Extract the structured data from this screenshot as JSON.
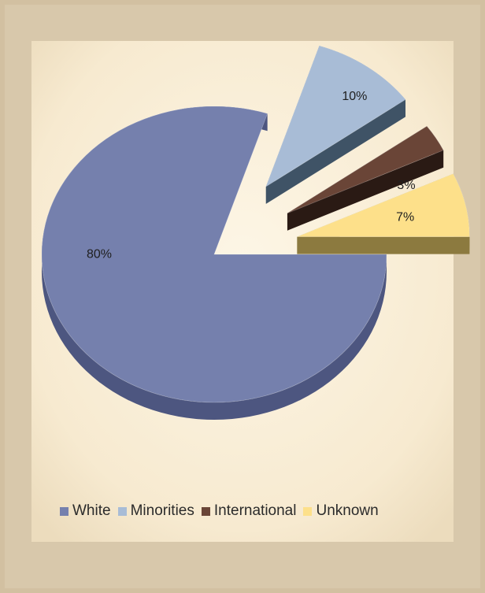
{
  "chart_data": {
    "type": "pie",
    "categories": [
      "White",
      "Minorities",
      "International",
      "Unknown"
    ],
    "values": [
      80,
      10,
      3,
      7
    ],
    "data_labels": [
      "80%",
      "10%",
      "3%",
      "7%"
    ],
    "legend_placement": "bottom",
    "exploded_slices": [
      "Minorities",
      "International",
      "Unknown"
    ],
    "three_d": true,
    "colors": {
      "White": "#7580ad",
      "Minorities": "#a8bcd6",
      "International": "#6a4537",
      "Unknown": "#fde08a"
    },
    "side_colors": {
      "White": "#4d5680",
      "Minorities": "#3f5366",
      "International": "#2a1a14",
      "Unknown": "#8c7a3f"
    },
    "background_color": "#fbf0da",
    "frame_color": "#d8c8ab"
  }
}
